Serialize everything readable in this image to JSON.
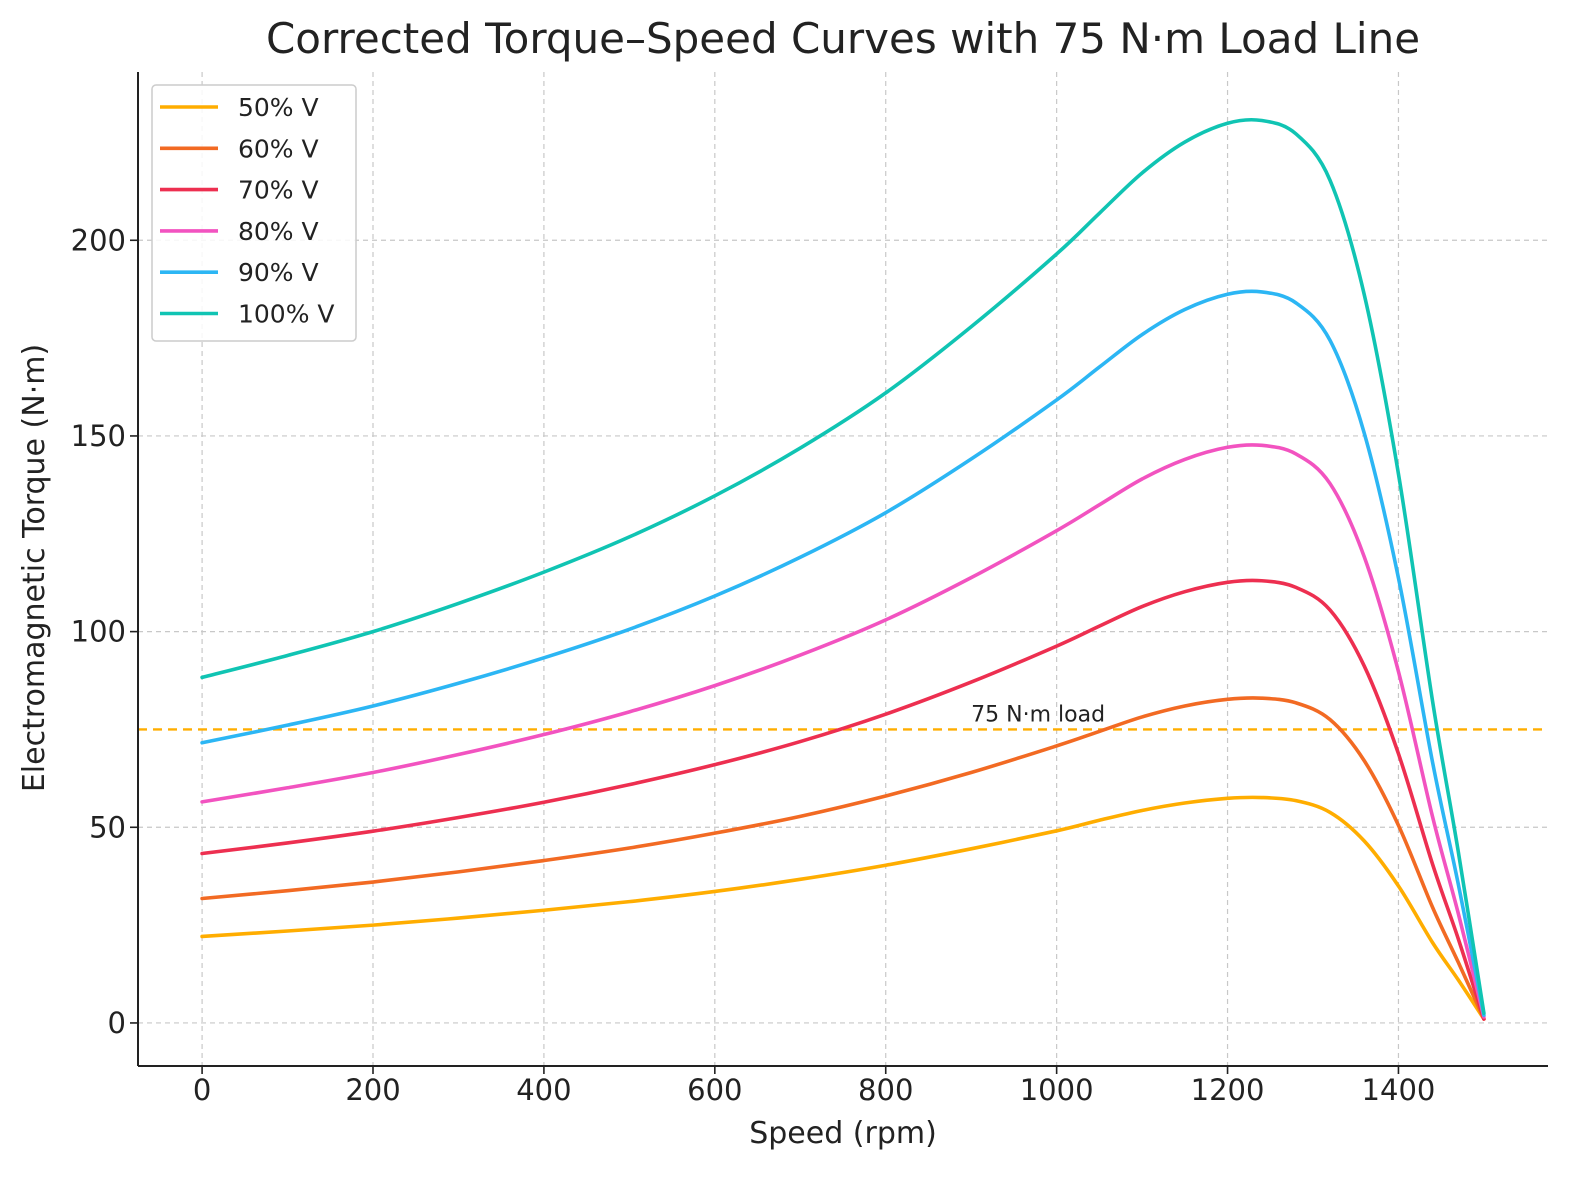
{
  "chart_data": {
    "type": "line",
    "title": "Corrected Torque–Speed Curves with 75 N·m Load Line",
    "xlabel": "Speed (rpm)",
    "ylabel": "Electromagnetic Torque (N·m)",
    "xlim": [
      -75,
      1575
    ],
    "ylim": [
      -11,
      243
    ],
    "xticks": [
      0,
      200,
      400,
      600,
      800,
      1000,
      1200,
      1400
    ],
    "yticks": [
      0,
      50,
      100,
      150,
      200
    ],
    "grid": true,
    "legend_position": "upper-left",
    "x": [
      0,
      100,
      200,
      300,
      400,
      500,
      600,
      700,
      800,
      900,
      1000,
      1050,
      1100,
      1150,
      1200,
      1240,
      1280,
      1320,
      1360,
      1400,
      1440,
      1470,
      1500
    ],
    "series": [
      {
        "name": "50% V",
        "color": "#ffad00",
        "values": [
          22.1,
          23.5,
          25.0,
          26.8,
          28.8,
          31.0,
          33.6,
          36.7,
          40.3,
          44.5,
          49.1,
          51.8,
          54.3,
          56.2,
          57.4,
          57.6,
          56.8,
          53.8,
          46.5,
          35.0,
          20.5,
          11.0,
          1.0
        ]
      },
      {
        "name": "60% V",
        "color": "#f26a23",
        "values": [
          31.8,
          33.8,
          36.0,
          38.6,
          41.5,
          44.7,
          48.5,
          52.8,
          58.0,
          64.0,
          70.8,
          74.5,
          78.2,
          81.0,
          82.7,
          83.0,
          81.8,
          77.5,
          67.0,
          50.5,
          29.5,
          15.5,
          1.0
        ]
      },
      {
        "name": "70% V",
        "color": "#ed2f50",
        "values": [
          43.3,
          46.0,
          49.0,
          52.5,
          56.4,
          60.9,
          66.0,
          71.9,
          78.9,
          87.1,
          96.3,
          101.4,
          106.4,
          110.2,
          112.6,
          113.0,
          111.3,
          105.5,
          91.2,
          68.8,
          40.5,
          21.5,
          1.0
        ]
      },
      {
        "name": "80% V",
        "color": "#f253c0",
        "values": [
          56.5,
          60.1,
          64.0,
          68.6,
          73.7,
          79.5,
          86.2,
          94.0,
          103.0,
          113.8,
          125.8,
          132.4,
          139.0,
          144.0,
          147.1,
          147.6,
          145.4,
          137.8,
          119.1,
          89.8,
          52.6,
          28.0,
          1.5
        ]
      },
      {
        "name": "90% V",
        "color": "#2cb6f4",
        "values": [
          71.6,
          76.1,
          81.0,
          86.8,
          93.3,
          100.6,
          109.1,
          119.0,
          130.4,
          144.1,
          159.2,
          167.6,
          175.9,
          182.3,
          186.2,
          186.8,
          184.0,
          174.4,
          150.7,
          113.7,
          66.5,
          35.5,
          2.0
        ]
      },
      {
        "name": "100% V",
        "color": "#10c4b3",
        "values": [
          88.3,
          93.9,
          100.0,
          107.2,
          115.2,
          124.2,
          134.7,
          146.9,
          161.0,
          177.9,
          196.5,
          206.9,
          217.2,
          225.1,
          229.9,
          230.6,
          227.2,
          215.3,
          186.1,
          140.3,
          82.1,
          43.8,
          2.5
        ]
      }
    ],
    "reference_lines": [
      {
        "axis": "y",
        "value": 75,
        "label": "75 N·m load",
        "color": "#ffad00",
        "style": "dashed"
      }
    ]
  }
}
